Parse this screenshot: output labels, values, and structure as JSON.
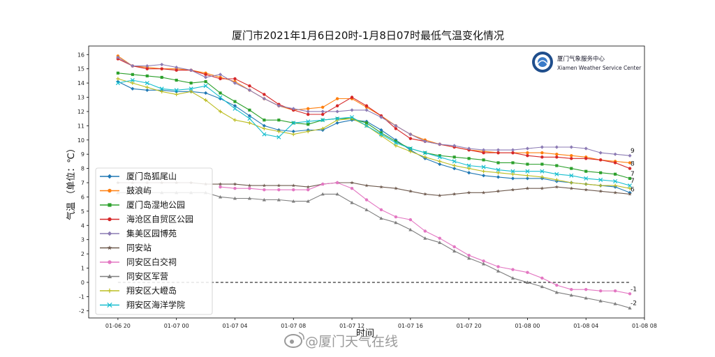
{
  "chart_data": {
    "type": "line",
    "title": "厦门市2021年1月6日20时-1月8日07时最低气温变化情况",
    "xlabel": "时间",
    "ylabel": "气温 （单位：℃）",
    "x_ticks": [
      "01-06 20",
      "01-07 00",
      "01-07 04",
      "01-07 08",
      "01-07 12",
      "01-07 16",
      "01-07 20",
      "01-08 00",
      "01-08 04",
      "01-08 08"
    ],
    "x_range_hours": [
      -2,
      36
    ],
    "ylim": [
      -2.5,
      16.6
    ],
    "y_ticks": [
      -2,
      -1,
      0,
      1,
      2,
      3,
      4,
      5,
      6,
      7,
      8,
      9,
      10,
      11,
      12,
      13,
      14,
      15,
      16
    ],
    "legend_position": "center-left",
    "reference_line": {
      "y": 0,
      "style": "dashed",
      "color": "#000000"
    },
    "x_hours": [
      0,
      1,
      2,
      3,
      4,
      5,
      6,
      7,
      8,
      9,
      10,
      11,
      12,
      13,
      14,
      15,
      16,
      17,
      18,
      19,
      20,
      21,
      22,
      23,
      24,
      25,
      26,
      27,
      28,
      29,
      30,
      31,
      32,
      33,
      34,
      35
    ],
    "series": [
      {
        "name": "厦门岛狐尾山",
        "color": "#1f77b4",
        "marker": "diamond",
        "values": [
          14.1,
          13.6,
          13.5,
          13.5,
          13.4,
          13.4,
          13.3,
          12.9,
          12.4,
          11.7,
          11.0,
          10.7,
          10.6,
          10.7,
          10.7,
          11.2,
          11.4,
          11.3,
          10.7,
          10.0,
          9.3,
          8.7,
          8.3,
          8.0,
          7.7,
          7.5,
          7.4,
          7.3,
          7.3,
          7.3,
          7.1,
          7.0,
          6.9,
          6.8,
          6.7,
          6.3
        ],
        "end_label": null
      },
      {
        "name": "鼓浪屿",
        "color": "#ff7f0e",
        "marker": "circle",
        "values": [
          15.9,
          15.2,
          15.1,
          15.0,
          15.0,
          14.9,
          14.7,
          14.4,
          14.1,
          13.5,
          12.9,
          12.4,
          12.1,
          12.2,
          12.3,
          12.9,
          12.9,
          12.3,
          11.7,
          11.0,
          10.4,
          10.0,
          9.7,
          9.5,
          9.3,
          9.2,
          9.1,
          9.1,
          9.1,
          9.1,
          9.0,
          8.9,
          8.8,
          8.6,
          8.5,
          8.4
        ],
        "end_label": null
      },
      {
        "name": "厦门岛湿地公园",
        "color": "#2ca02c",
        "marker": "square",
        "values": [
          14.7,
          14.6,
          14.5,
          14.4,
          14.2,
          14.0,
          14.1,
          13.3,
          12.7,
          12.1,
          11.4,
          11.4,
          11.2,
          11.1,
          11.4,
          11.5,
          11.5,
          11.2,
          10.5,
          9.9,
          9.4,
          9.1,
          8.9,
          8.8,
          8.7,
          8.6,
          8.4,
          8.4,
          8.3,
          8.3,
          8.2,
          8.0,
          7.8,
          7.7,
          7.6,
          7.3
        ],
        "end_label": "7"
      },
      {
        "name": "海沧区自贸区公园",
        "color": "#d62728",
        "marker": "circle",
        "values": [
          15.7,
          15.2,
          15.0,
          15.0,
          14.9,
          14.9,
          14.6,
          14.3,
          14.3,
          13.8,
          13.2,
          12.5,
          12.1,
          11.8,
          11.8,
          12.4,
          13.0,
          12.4,
          11.7,
          10.8,
          10.1,
          9.9,
          9.7,
          9.5,
          9.3,
          9.1,
          9.1,
          9.1,
          8.9,
          8.8,
          8.8,
          8.7,
          8.7,
          8.6,
          8.4,
          8.0
        ],
        "end_label": "8"
      },
      {
        "name": "集美区园博苑",
        "color": "#8c7bb4",
        "marker": "diamond",
        "values": [
          15.8,
          15.2,
          15.2,
          15.3,
          15.1,
          14.9,
          14.4,
          14.6,
          14.0,
          13.5,
          12.9,
          12.4,
          12.2,
          12.0,
          12.0,
          12.0,
          12.1,
          12.1,
          11.6,
          11.0,
          10.4,
          9.9,
          9.7,
          9.6,
          9.4,
          9.3,
          9.3,
          9.3,
          9.4,
          9.5,
          9.5,
          9.5,
          9.4,
          9.1,
          9.0,
          8.9
        ],
        "end_label": "9"
      },
      {
        "name": "同安站",
        "color": "#6e5a4e",
        "marker": "star",
        "values": [
          7.0,
          7.0,
          7.0,
          7.0,
          7.0,
          7.0,
          6.9,
          6.9,
          6.9,
          6.8,
          6.8,
          6.8,
          6.8,
          6.7,
          6.9,
          7.0,
          7.0,
          6.8,
          6.7,
          6.6,
          6.4,
          6.2,
          6.1,
          6.2,
          6.3,
          6.3,
          6.4,
          6.5,
          6.6,
          6.6,
          6.7,
          6.6,
          6.5,
          6.4,
          6.3,
          6.2
        ],
        "end_label": "6"
      },
      {
        "name": "同安区白交祠",
        "color": "#e377c2",
        "marker": "circle",
        "values": [
          null,
          null,
          null,
          null,
          null,
          null,
          null,
          6.7,
          6.6,
          6.6,
          6.5,
          6.5,
          6.5,
          6.5,
          6.9,
          7.0,
          6.6,
          5.8,
          5.1,
          4.6,
          4.4,
          3.6,
          3.1,
          2.5,
          1.9,
          1.5,
          1.1,
          0.9,
          0.7,
          0.3,
          -0.2,
          -0.5,
          -0.5,
          -0.6,
          -0.6,
          -0.8
        ],
        "end_label": "-1"
      },
      {
        "name": "同安区军营",
        "color": "#7f7f7f",
        "marker": "triangle",
        "values": [
          6.3,
          6.3,
          6.3,
          6.3,
          6.3,
          6.3,
          6.3,
          6.0,
          5.9,
          5.9,
          5.8,
          5.8,
          5.7,
          5.7,
          6.2,
          6.2,
          5.6,
          5.1,
          4.5,
          4.2,
          3.7,
          3.1,
          2.8,
          2.2,
          1.7,
          1.3,
          0.8,
          0.3,
          0.0,
          -0.3,
          -0.7,
          -0.9,
          -1.1,
          -1.3,
          -1.5,
          -1.8
        ],
        "end_label": "-2"
      },
      {
        "name": "翔安区大嶝岛",
        "color": "#bcbd22",
        "marker": "plus",
        "values": [
          14.3,
          14.0,
          13.7,
          13.4,
          13.2,
          13.4,
          12.8,
          12.0,
          11.4,
          11.2,
          10.8,
          10.6,
          10.4,
          10.6,
          10.8,
          11.4,
          11.5,
          11.0,
          10.3,
          9.6,
          9.2,
          8.8,
          8.5,
          8.2,
          8.0,
          7.8,
          7.7,
          7.6,
          7.5,
          7.4,
          7.2,
          7.0,
          6.9,
          6.8,
          6.8,
          6.6
        ],
        "end_label": null
      },
      {
        "name": "翔安区海洋学院",
        "color": "#17becf",
        "marker": "x",
        "values": [
          14.0,
          14.2,
          14.0,
          13.6,
          13.5,
          13.6,
          13.8,
          13.0,
          12.2,
          11.5,
          10.4,
          10.2,
          11.2,
          11.3,
          11.4,
          11.5,
          11.6,
          11.0,
          10.4,
          9.8,
          9.4,
          9.1,
          8.8,
          8.5,
          8.2,
          8.1,
          7.9,
          7.8,
          7.8,
          7.8,
          7.6,
          7.5,
          7.3,
          7.2,
          7.1,
          6.8
        ],
        "end_label": "7"
      }
    ]
  },
  "logo": {
    "name_cn": "厦门气象服务中心",
    "name_en": "Xiamen Weather Service Center",
    "icon": "weather-service-emblem-icon"
  },
  "watermark": {
    "text": "@厦门天气在线",
    "icon": "weibo-icon"
  }
}
